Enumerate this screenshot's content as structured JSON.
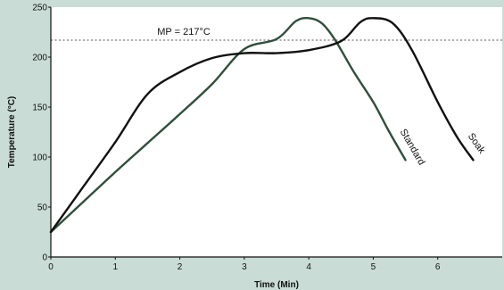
{
  "chart_data": {
    "type": "line",
    "xlabel": "Time (Min)",
    "ylabel": "Temperature (°C)",
    "xlim": [
      0,
      7
    ],
    "ylim": [
      0,
      250
    ],
    "x_ticks": [
      0,
      1,
      2,
      3,
      4,
      5,
      6
    ],
    "x_tick_labels": [
      "0",
      "1",
      "2",
      "3",
      "4",
      "5",
      "6"
    ],
    "y_ticks": [
      0,
      50,
      100,
      150,
      200,
      250
    ],
    "y_tick_labels": [
      "0",
      "50",
      "100",
      "150",
      "200",
      "250"
    ],
    "grid": false,
    "reference_line": {
      "y": 217,
      "label": "MP = 217°C"
    },
    "series": [
      {
        "name": "Standard",
        "color": "#2f4f3c",
        "points": [
          [
            0,
            25
          ],
          [
            0.5,
            55
          ],
          [
            1,
            85
          ],
          [
            1.5,
            114
          ],
          [
            2,
            143
          ],
          [
            2.5,
            173
          ],
          [
            3,
            208
          ],
          [
            3.5,
            218
          ],
          [
            3.8,
            236
          ],
          [
            4,
            239
          ],
          [
            4.2,
            234
          ],
          [
            4.4,
            218
          ],
          [
            4.7,
            185
          ],
          [
            5,
            155
          ],
          [
            5.25,
            125
          ],
          [
            5.5,
            97
          ]
        ]
      },
      {
        "name": "Soak",
        "color": "#111111",
        "points": [
          [
            0,
            25
          ],
          [
            0.5,
            70
          ],
          [
            1,
            115
          ],
          [
            1.5,
            163
          ],
          [
            2,
            185
          ],
          [
            2.5,
            199
          ],
          [
            3,
            204
          ],
          [
            3.5,
            204
          ],
          [
            4,
            207
          ],
          [
            4.5,
            216
          ],
          [
            4.8,
            235
          ],
          [
            5,
            239
          ],
          [
            5.3,
            234
          ],
          [
            5.6,
            207
          ],
          [
            6,
            155
          ],
          [
            6.3,
            120
          ],
          [
            6.55,
            97
          ]
        ]
      }
    ]
  }
}
